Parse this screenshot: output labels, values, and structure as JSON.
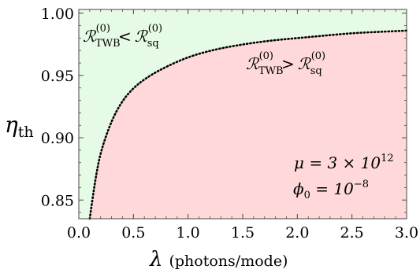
{
  "chart_data": {
    "type": "area",
    "title": "",
    "xlabel_symbol": "λ",
    "xlabel_unit": "(photons/mode)",
    "ylabel_symbol": "η",
    "ylabel_sub": "th",
    "xlim": [
      0.0,
      3.0
    ],
    "ylim": [
      0.835,
      1.003
    ],
    "xticks": [
      0.0,
      0.5,
      1.0,
      1.5,
      2.0,
      2.5,
      3.0
    ],
    "xtick_labels": [
      "0.0",
      "0.5",
      "1.0",
      "1.5",
      "2.0",
      "2.5",
      "3.0"
    ],
    "yticks": [
      0.85,
      0.9,
      0.95,
      1.0
    ],
    "ytick_labels": [
      "0.85",
      "0.90",
      "0.95",
      "1.00"
    ],
    "grid": false,
    "series": [
      {
        "style": "dotted",
        "color": "#000000",
        "x": [
          0.1,
          0.15,
          0.2,
          0.3,
          0.4,
          0.5,
          0.6,
          0.75,
          1.0,
          1.25,
          1.5,
          1.75,
          2.0,
          2.25,
          2.5,
          2.75,
          3.0
        ],
        "y": [
          0.835,
          0.866,
          0.889,
          0.914,
          0.93,
          0.94,
          0.947,
          0.955,
          0.965,
          0.971,
          0.975,
          0.978,
          0.98,
          0.982,
          0.984,
          0.985,
          0.986
        ]
      }
    ],
    "regions": [
      {
        "label_main": "ℛ",
        "label_sub1": "TWB",
        "label_sup1": "(0)",
        "relation": "<",
        "label_sub2": "sq",
        "label_sup2": "(0)",
        "color": "#e6fbe6",
        "side": "above"
      },
      {
        "label_main": "ℛ",
        "label_sub1": "TWB",
        "label_sup1": "(0)",
        "relation": ">",
        "label_sub2": "sq",
        "label_sup2": "(0)",
        "color": "#ffd9d9",
        "side": "below"
      }
    ],
    "annotations": {
      "mu_lhs": "μ = 3 × 10",
      "mu_exp": "12",
      "phi_lhs": "ϕ",
      "phi_sub": "0",
      "phi_rhs": " = 10",
      "phi_exp": "−8"
    }
  }
}
